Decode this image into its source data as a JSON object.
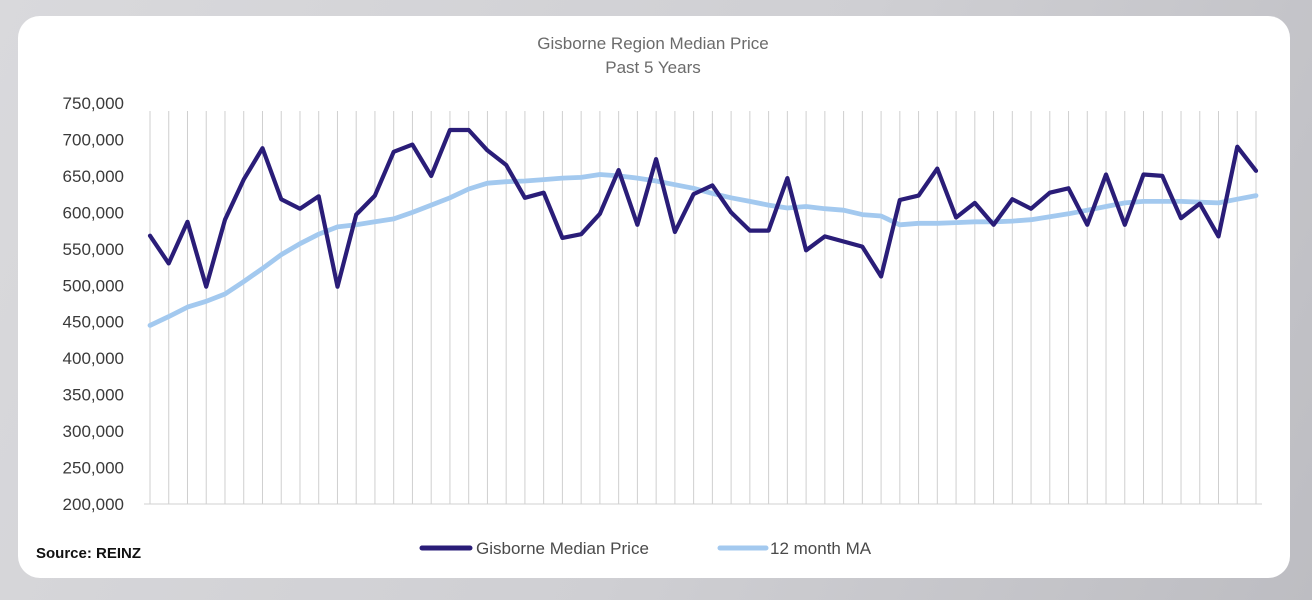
{
  "chart_data": {
    "type": "line",
    "title": "Gisborne Region Median Price",
    "subtitle": "Past 5 Years",
    "ylim": [
      200000,
      750000
    ],
    "y_ticks": [
      "200,000",
      "250,000",
      "300,000",
      "350,000",
      "400,000",
      "450,000",
      "500,000",
      "550,000",
      "600,000",
      "650,000",
      "700,000",
      "750,000"
    ],
    "grid": "vertical",
    "legend_position": "bottom",
    "source": "Source: REINZ",
    "colors": {
      "median": "#2a1d78",
      "ma": "#a3c9ef",
      "grid": "#cfcfcf"
    },
    "series": [
      {
        "name": "Gisborne Median Price",
        "values": [
          568000,
          530000,
          587000,
          498000,
          590000,
          645000,
          688000,
          618000,
          605000,
          622000,
          498000,
          597000,
          623000,
          683000,
          693000,
          650000,
          713000,
          713000,
          685000,
          665000,
          620000,
          627000,
          565000,
          570000,
          598000,
          658000,
          583000,
          673000,
          573000,
          625000,
          637000,
          600000,
          575000,
          575000,
          647000,
          548000,
          567000,
          560000,
          553000,
          512000,
          617000,
          623000,
          660000,
          593000,
          613000,
          583000,
          618000,
          605000,
          627000,
          633000,
          583000,
          652000,
          583000,
          652000,
          650000,
          592000,
          612000,
          567000,
          690000,
          657000
        ]
      },
      {
        "name": "12 month MA",
        "values": [
          445000,
          457000,
          470000,
          478000,
          488000,
          505000,
          523000,
          542000,
          557000,
          570000,
          580000,
          583000,
          587000,
          591000,
          600000,
          610000,
          620000,
          632000,
          640000,
          642000,
          643000,
          645000,
          647000,
          648000,
          652000,
          650000,
          647000,
          643000,
          638000,
          633000,
          626000,
          620000,
          615000,
          610000,
          606000,
          608000,
          605000,
          603000,
          597000,
          595000,
          583000,
          585000,
          585000,
          586000,
          587000,
          587000,
          588000,
          590000,
          594000,
          598000,
          603000,
          608000,
          613000,
          615000,
          615000,
          615000,
          614000,
          613000,
          618000,
          623000
        ]
      }
    ]
  }
}
